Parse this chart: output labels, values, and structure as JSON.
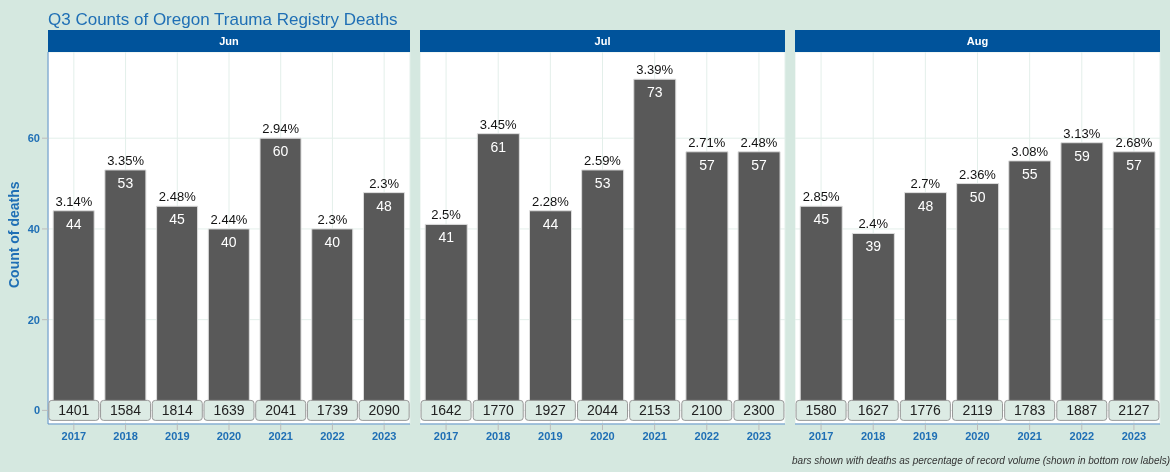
{
  "chart_data": [
    {
      "type": "bar",
      "title": "Q3 Counts of Oregon Trauma Registry Deaths",
      "subtitle": "Jun",
      "ylabel": "Count of deaths",
      "categories": [
        "2017",
        "2018",
        "2019",
        "2020",
        "2021",
        "2022",
        "2023"
      ],
      "values": [
        44,
        53,
        45,
        40,
        60,
        40,
        48
      ],
      "color": "#595959",
      "ylim": [
        -3,
        79
      ],
      "yticks": [
        0,
        20,
        40,
        60
      ],
      "grid": true,
      "data_labels": true,
      "annotations": [
        {
          "text": "3.14%",
          "x": "2017",
          "y": 44
        },
        {
          "text": "3.35%",
          "x": "2018",
          "y": 53
        },
        {
          "text": "2.48%",
          "x": "2019",
          "y": 45
        },
        {
          "text": "2.44%",
          "x": "2020",
          "y": 40
        },
        {
          "text": "2.94%",
          "x": "2021",
          "y": 60
        },
        {
          "text": "2.3%",
          "x": "2022",
          "y": 40
        },
        {
          "text": "2.3%",
          "x": "2023",
          "y": 48
        },
        {
          "text": "1401",
          "x": "2017",
          "y": 0
        },
        {
          "text": "1584",
          "x": "2018",
          "y": 0
        },
        {
          "text": "1814",
          "x": "2019",
          "y": 0
        },
        {
          "text": "1639",
          "x": "2020",
          "y": 0
        },
        {
          "text": "2041",
          "x": "2021",
          "y": 0
        },
        {
          "text": "1739",
          "x": "2022",
          "y": 0
        },
        {
          "text": "2090",
          "x": "2023",
          "y": 0
        }
      ]
    },
    {
      "type": "bar",
      "subtitle": "Jul",
      "categories": [
        "2017",
        "2018",
        "2019",
        "2020",
        "2021",
        "2022",
        "2023"
      ],
      "values": [
        41,
        61,
        44,
        53,
        73,
        57,
        57
      ],
      "color": "#595959",
      "ylim": [
        -3,
        79
      ],
      "yticks": [
        0,
        20,
        40,
        60
      ],
      "grid": true,
      "data_labels": true,
      "tick_labels": "x",
      "annotations": [
        {
          "text": "2.5%",
          "x": "2017",
          "y": 41
        },
        {
          "text": "3.45%",
          "x": "2018",
          "y": 61
        },
        {
          "text": "2.28%",
          "x": "2019",
          "y": 44
        },
        {
          "text": "2.59%",
          "x": "2020",
          "y": 53
        },
        {
          "text": "3.39%",
          "x": "2021",
          "y": 73
        },
        {
          "text": "2.71%",
          "x": "2022",
          "y": 57
        },
        {
          "text": "2.48%",
          "x": "2023",
          "y": 57
        },
        {
          "text": "1642",
          "x": "2017",
          "y": 0
        },
        {
          "text": "1770",
          "x": "2018",
          "y": 0
        },
        {
          "text": "1927",
          "x": "2019",
          "y": 0
        },
        {
          "text": "2044",
          "x": "2020",
          "y": 0
        },
        {
          "text": "2153",
          "x": "2021",
          "y": 0
        },
        {
          "text": "2100",
          "x": "2022",
          "y": 0
        },
        {
          "text": "2300",
          "x": "2023",
          "y": 0
        }
      ]
    },
    {
      "type": "bar",
      "subtitle": "Aug",
      "categories": [
        "2017",
        "2018",
        "2019",
        "2020",
        "2021",
        "2022",
        "2023"
      ],
      "values": [
        45,
        39,
        48,
        50,
        55,
        59,
        57
      ],
      "color": "#595959",
      "ylim": [
        -3,
        79
      ],
      "yticks": [
        0,
        20,
        40,
        60
      ],
      "grid": true,
      "data_labels": true,
      "tick_labels": "x",
      "annotations": [
        {
          "text": "2.85%",
          "x": "2017",
          "y": 45
        },
        {
          "text": "2.4%",
          "x": "2018",
          "y": 39
        },
        {
          "text": "2.7%",
          "x": "2019",
          "y": 48
        },
        {
          "text": "2.36%",
          "x": "2020",
          "y": 50
        },
        {
          "text": "3.08%",
          "x": "2021",
          "y": 55
        },
        {
          "text": "3.13%",
          "x": "2022",
          "y": 59
        },
        {
          "text": "2.68%",
          "x": "2023",
          "y": 57
        },
        {
          "text": "1580",
          "x": "2017",
          "y": 0
        },
        {
          "text": "1627",
          "x": "2018",
          "y": 0
        },
        {
          "text": "1776",
          "x": "2019",
          "y": 0
        },
        {
          "text": "2119",
          "x": "2020",
          "y": 0
        },
        {
          "text": "1783",
          "x": "2021",
          "y": 0
        },
        {
          "text": "1887",
          "x": "2022",
          "y": 0
        },
        {
          "text": "2127",
          "x": "2023",
          "y": 0
        },
        "bars shown with deaths as percentage of record volume (shown in bottom row labels)"
      ]
    }
  ]
}
